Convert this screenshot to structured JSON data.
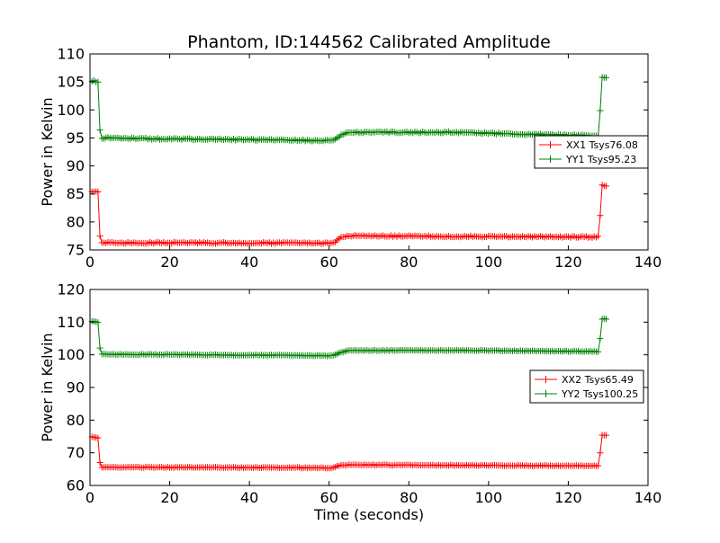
{
  "figure": {
    "title": "Phantom, ID:144562 Calibrated Amplitude",
    "xlabel": "Time (seconds)"
  },
  "chart_data": [
    {
      "type": "line",
      "title": "Phantom, ID:144562 Calibrated Amplitude",
      "xlabel": "",
      "ylabel": "Power in Kelvin",
      "xlim": [
        0,
        140
      ],
      "ylim": [
        75,
        110
      ],
      "xticks": [
        "0",
        "20",
        "40",
        "60",
        "80",
        "100",
        "120",
        "140"
      ],
      "yticks": [
        "75",
        "80",
        "85",
        "90",
        "95",
        "100",
        "105",
        "110"
      ],
      "grid": false,
      "legend_position": "right",
      "series": [
        {
          "name": "XX1 Tsys76.08",
          "color": "#ff0000",
          "marker": "+",
          "profile": [
            [
              0.5,
              85.5
            ],
            [
              2,
              85.3
            ],
            [
              2.5,
              77.5
            ],
            [
              3,
              76.3
            ],
            [
              61,
              76.2
            ],
            [
              63,
              77.2
            ],
            [
              65,
              77.5
            ],
            [
              127.5,
              77.3
            ],
            [
              128,
              81.2
            ],
            [
              128.5,
              86.5
            ],
            [
              129.5,
              86.5
            ]
          ]
        },
        {
          "name": "YY1 Tsys95.23",
          "color": "#008000",
          "marker": "+",
          "profile": [
            [
              0.5,
              105.2
            ],
            [
              2,
              105.0
            ],
            [
              2.5,
              96.5
            ],
            [
              3,
              95.0
            ],
            [
              20,
              94.8
            ],
            [
              40,
              94.7
            ],
            [
              61,
              94.5
            ],
            [
              63,
              95.5
            ],
            [
              65,
              96.0
            ],
            [
              90,
              96.0
            ],
            [
              127.5,
              95.4
            ],
            [
              128,
              100.0
            ],
            [
              128.5,
              105.8
            ],
            [
              129.5,
              105.8
            ]
          ]
        }
      ]
    },
    {
      "type": "line",
      "title": "",
      "xlabel": "Time (seconds)",
      "ylabel": "Power in Kelvin",
      "xlim": [
        0,
        140
      ],
      "ylim": [
        60,
        120
      ],
      "xticks": [
        "0",
        "20",
        "40",
        "60",
        "80",
        "100",
        "120",
        "140"
      ],
      "yticks": [
        "60",
        "70",
        "80",
        "90",
        "100",
        "110",
        "120"
      ],
      "grid": false,
      "legend_position": "right",
      "series": [
        {
          "name": "XX2 Tsys65.49",
          "color": "#ff0000",
          "marker": "+",
          "profile": [
            [
              0.5,
              74.8
            ],
            [
              2,
              74.6
            ],
            [
              2.5,
              67.0
            ],
            [
              3,
              65.6
            ],
            [
              61,
              65.4
            ],
            [
              63,
              66.2
            ],
            [
              65,
              66.3
            ],
            [
              127.5,
              66.0
            ],
            [
              128,
              70.0
            ],
            [
              128.5,
              75.5
            ],
            [
              129.5,
              75.5
            ]
          ]
        },
        {
          "name": "YY2 Tsys100.25",
          "color": "#008000",
          "marker": "+",
          "profile": [
            [
              0.5,
              110.3
            ],
            [
              2,
              110.0
            ],
            [
              2.5,
              102.0
            ],
            [
              3,
              100.2
            ],
            [
              40,
              99.9
            ],
            [
              61,
              99.7
            ],
            [
              63,
              100.8
            ],
            [
              65,
              101.3
            ],
            [
              90,
              101.4
            ],
            [
              127.5,
              101.0
            ],
            [
              128,
              105.0
            ],
            [
              128.5,
              111.0
            ],
            [
              129.5,
              111.0
            ]
          ]
        }
      ]
    }
  ]
}
